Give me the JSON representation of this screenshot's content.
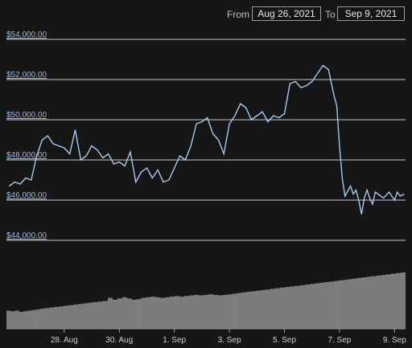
{
  "range": {
    "from_label": "From",
    "from_value": "Aug 26, 2021",
    "to_label": "To",
    "to_value": "Sep 9, 2021"
  },
  "colors": {
    "background": "#161616",
    "line": "#a8c8f4",
    "grid": "#e8e8e8",
    "volume": "#bfbfbf",
    "y_label": "#9ab8ee",
    "x_label": "#d0d0d0"
  },
  "chart_data": {
    "type": "line",
    "title": "",
    "xlabel": "",
    "ylabel": "",
    "grid": true,
    "ylim": [
      44000,
      54000
    ],
    "y_ticks": [
      44000,
      46000,
      48000,
      50000,
      52000,
      54000
    ],
    "y_tick_labels": [
      "$44,000.00",
      "$46,000.00",
      "$48,000.00",
      "$50,000.00",
      "$52,000.00",
      "$54,000.00"
    ],
    "x_ticks": [
      2,
      4,
      6,
      8,
      10,
      12,
      14
    ],
    "x_tick_labels": [
      "28. Aug",
      "30. Aug",
      "1. Sep",
      "3. Sep",
      "5. Sep",
      "7. Sep",
      "9. Sep"
    ],
    "x_range": [
      -0.1,
      14.4
    ],
    "x_unit": "days from Aug 26, 2021",
    "series": [
      {
        "x": [
          0,
          0.2,
          0.4,
          0.6,
          0.8,
          1.0,
          1.2,
          1.4,
          1.6,
          1.8,
          2.0,
          2.2,
          2.4,
          2.6,
          2.8,
          3.0,
          3.2,
          3.4,
          3.6,
          3.8,
          4.0,
          4.2,
          4.4,
          4.6,
          4.8,
          5.0,
          5.2,
          5.4,
          5.6,
          5.8,
          6.0,
          6.2,
          6.4,
          6.6,
          6.8,
          7.0,
          7.2,
          7.4,
          7.6,
          7.8,
          8.0,
          8.2,
          8.4,
          8.6,
          8.8,
          9.0,
          9.2,
          9.4,
          9.6,
          9.8,
          10.0,
          10.2,
          10.4,
          10.6,
          10.8,
          11.0,
          11.2,
          11.4,
          11.6,
          11.8,
          11.9,
          12.0,
          12.1,
          12.2,
          12.4,
          12.5,
          12.6,
          12.7,
          12.8,
          12.9,
          13.0,
          13.1,
          13.2,
          13.3,
          13.4,
          13.6,
          13.8,
          14.0,
          14.1,
          14.2,
          14.35
        ],
        "values": [
          46700,
          46900,
          46800,
          47100,
          47000,
          48200,
          49000,
          49200,
          48800,
          48700,
          48600,
          48300,
          49500,
          48000,
          48200,
          48700,
          48500,
          48100,
          48300,
          47800,
          47900,
          47700,
          48400,
          46900,
          47400,
          47600,
          47100,
          47500,
          46900,
          47000,
          47600,
          48200,
          48000,
          48700,
          49800,
          49900,
          50100,
          49300,
          49000,
          48300,
          49800,
          50200,
          50800,
          50600,
          50000,
          50200,
          50400,
          49900,
          50200,
          50100,
          50300,
          51800,
          51900,
          51600,
          51700,
          51900,
          52300,
          52700,
          52500,
          51200,
          50700,
          48700,
          47100,
          46200,
          46700,
          46300,
          46500,
          46000,
          45300,
          46100,
          46500,
          46100,
          45800,
          46400,
          46300,
          46100,
          46400,
          46000,
          46400,
          46200,
          46300
        ]
      }
    ],
    "volume": [
      14.6,
      14.6,
      14.6,
      14.6,
      14.6,
      14.1,
      14.1,
      14.1,
      14.1,
      14.1,
      14.1,
      14.6,
      14.6,
      14.6,
      14.6,
      14.6,
      13.6,
      13.6,
      13.6,
      13.6,
      13.6,
      14.1,
      14.1,
      14.1,
      14.1,
      14.1,
      14.1,
      14.6,
      14.6,
      14.6,
      14.6,
      14.6,
      15.1,
      15.1,
      15.1,
      15.1,
      15.1,
      15.6,
      15.6,
      15.6,
      15.6,
      15.6,
      16.1,
      16.1,
      16.1,
      16.1,
      16.1,
      16.1,
      16.6,
      16.6,
      16.6,
      16.6,
      16.6,
      16.6,
      17.1,
      17.1,
      17.1,
      17.1,
      17.1,
      17.1,
      17.6,
      17.6,
      17.6,
      17.6,
      17.6,
      17.6,
      18.0,
      18.0,
      18.0,
      18.0,
      18.0,
      18.0,
      18.5,
      18.5,
      18.5,
      18.5,
      18.5,
      18.5,
      19.0,
      19.0,
      19.0,
      19.0,
      19.0,
      19.0,
      19.5,
      19.5,
      19.5,
      19.5,
      19.5,
      19.5,
      20.0,
      20.0,
      20.0,
      20.0,
      20.0,
      20.0,
      20.5,
      20.5,
      20.5,
      20.5,
      20.5,
      20.5,
      21.0,
      21.0,
      21.0,
      21.0,
      21.0,
      21.0,
      21.5,
      21.5,
      21.5,
      21.5,
      21.5,
      21.5,
      21.5,
      22.0,
      22.0,
      22.0,
      22.0,
      22.0,
      22.0,
      22.4,
      22.4,
      22.4,
      22.4,
      22.4,
      22.4,
      24.9,
      24.9,
      24.9,
      24.9,
      24.9,
      24.9,
      23.4,
      23.4,
      23.4,
      23.4,
      23.4,
      23.4,
      24.4,
      24.4,
      24.4,
      24.4,
      24.4,
      24.4,
      25.4,
      25.4,
      25.4,
      25.4,
      25.4,
      25.4,
      24.4,
      24.4,
      24.4,
      24.4,
      24.4,
      24.4,
      23.4,
      23.4,
      23.4,
      23.4,
      23.4,
      23.4,
      23.9,
      23.9,
      23.9,
      23.9,
      23.9,
      23.9,
      24.9,
      24.9,
      24.9,
      24.9,
      24.9,
      24.9,
      25.4,
      25.4,
      25.4,
      25.4,
      25.4,
      25.4,
      25.9,
      25.9,
      25.9,
      25.9,
      25.9,
      25.9,
      25.4,
      25.4,
      25.4,
      25.4,
      25.4,
      25.4,
      24.9,
      24.9,
      24.9,
      24.9,
      24.9,
      24.9,
      25.4,
      25.4,
      25.4,
      25.4,
      25.4,
      25.4,
      25.9,
      25.9,
      25.9,
      25.9,
      25.9,
      25.9,
      26.4,
      26.4,
      26.4,
      26.4,
      26.4,
      26.4,
      25.9,
      25.9,
      25.9,
      25.9,
      25.9,
      25.9,
      26.4,
      26.4,
      26.4,
      26.4,
      26.4,
      26.4,
      26.9,
      26.9,
      26.9,
      26.9,
      26.9,
      26.9,
      27.3,
      27.3,
      27.3,
      27.3,
      27.3,
      27.3,
      26.9,
      26.9,
      26.9,
      26.9,
      26.9,
      26.9,
      27.3,
      27.3,
      27.3,
      27.3,
      27.3,
      27.3,
      27.8,
      27.8,
      27.8,
      27.8,
      27.8,
      27.8,
      27.3,
      27.3,
      27.3,
      27.3,
      27.3,
      27.3,
      26.9,
      26.9,
      26.9,
      26.9,
      26.9,
      26.9,
      27.3,
      27.3,
      27.3,
      27.3,
      27.3,
      27.3,
      27.8,
      27.8,
      27.8,
      27.8,
      27.8,
      27.8,
      28.3,
      28.3,
      28.3,
      28.3,
      28.3,
      28.3,
      28.8,
      28.8,
      28.8,
      28.8,
      28.8,
      28.8,
      29.3,
      29.3,
      29.3,
      29.3,
      29.3,
      29.3,
      29.8,
      29.8,
      29.8,
      29.8,
      29.8,
      29.8,
      30.2,
      30.2,
      30.2,
      30.2,
      30.2,
      30.2,
      30.7,
      30.7,
      30.7,
      30.7,
      30.7,
      30.7,
      31.2,
      31.2,
      31.2,
      31.2,
      31.2,
      31.2,
      31.7,
      31.7,
      31.7,
      31.7,
      31.7,
      31.7,
      32.2,
      32.2,
      32.2,
      32.2,
      32.2,
      32.2,
      32.7,
      32.7,
      32.7,
      32.7,
      32.7,
      32.7,
      33.2,
      33.2,
      33.2,
      33.2,
      33.2,
      33.2,
      33.7,
      33.7,
      33.7,
      33.7,
      33.7,
      33.7,
      34.1,
      34.1,
      34.1,
      34.1,
      34.1,
      34.1,
      34.6,
      34.6,
      34.6,
      34.6,
      34.6,
      34.6,
      34.6,
      35.1,
      35.1,
      35.1,
      35.1,
      35.1,
      35.1,
      35.6,
      35.6,
      35.6,
      35.6,
      35.6,
      35.6,
      36.1,
      36.1,
      36.1,
      36.1,
      36.1,
      36.1,
      36.6,
      36.6,
      36.6,
      36.6,
      36.6,
      36.6,
      37.1,
      37.1,
      37.1,
      37.1,
      37.1,
      37.1,
      37.6,
      37.6,
      37.6,
      37.6,
      37.6,
      37.6,
      38.0,
      38.0,
      38.0,
      38.0,
      38.0,
      38.0,
      38.5,
      38.5,
      38.5,
      38.5,
      38.5,
      38.5,
      39.0,
      39.0,
      39.0,
      39.0,
      39.0,
      39.0,
      39.5,
      39.5,
      39.5,
      39.5,
      39.5,
      39.5,
      40.0,
      40.0,
      40.0,
      40.0,
      40.0,
      40.0,
      40.5,
      40.5,
      40.5,
      40.5,
      40.5,
      40.5,
      41.0,
      41.0,
      41.0,
      41.0,
      41.0,
      41.0,
      41.5,
      41.5,
      41.5,
      41.5,
      41.5,
      41.5,
      42.0,
      42.0,
      42.0,
      42.0,
      42.0,
      42.0,
      42.4,
      42.4,
      42.4,
      42.4,
      42.4,
      42.4,
      42.9,
      42.9,
      42.9,
      42.9,
      42.9,
      42.9,
      43.4,
      43.4,
      43.4,
      43.4,
      43.4,
      43.4,
      43.9,
      43.9,
      43.9,
      43.9,
      43.9,
      43.9,
      44.4,
      44.4,
      44.4,
      44.4,
      44.4,
      44.4,
      44.9,
      44.9,
      44.9,
      44.9,
      44.9,
      44.9,
      45.4,
      45.4,
      45.4,
      45.4,
      45.4,
      45.4
    ]
  }
}
